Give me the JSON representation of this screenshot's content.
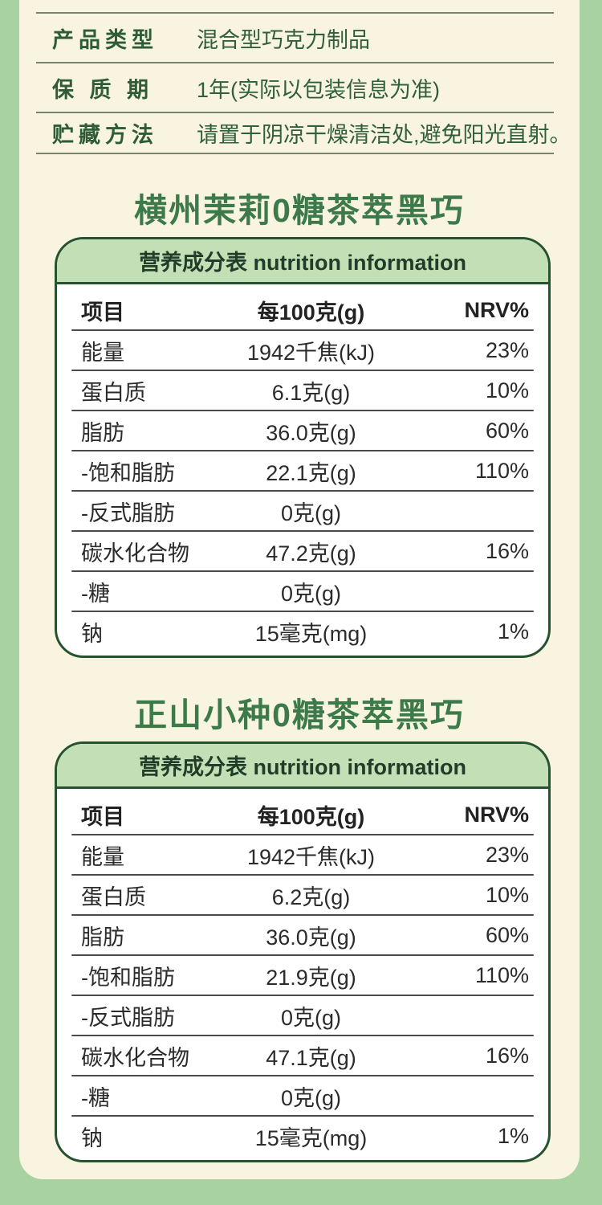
{
  "colors": {
    "page_bg": "#a9d2a2",
    "panel_bg": "#f9f4df",
    "label_green": "#2d5c36",
    "title_green": "#3c7a4a",
    "card_border_green": "#27522f",
    "header_band_green": "#c3dfb6",
    "table_text": "#2b2b2b"
  },
  "info_section": {
    "rows": [
      {
        "label": "产品类型",
        "value": "混合型巧克力制品"
      },
      {
        "label": "保 质 期",
        "value": "1年(实际以包装信息为准)"
      },
      {
        "label": "贮藏方法",
        "value": "请置于阴凉干燥清洁处,避免阳光直射。"
      }
    ]
  },
  "products": [
    {
      "title": "横州茉莉0糖茶萃黑巧",
      "table": {
        "header": "营养成分表 nutrition information",
        "columns": {
          "item": "项目",
          "per100g": "每100克(g)",
          "nrv": "NRV%"
        },
        "rows": [
          {
            "name": "能量",
            "amount": "1942千焦(kJ)",
            "nrv": "23%"
          },
          {
            "name": "蛋白质",
            "amount": "6.1克(g)",
            "nrv": "10%"
          },
          {
            "name": "脂肪",
            "amount": "36.0克(g)",
            "nrv": "60%"
          },
          {
            "name": "-饱和脂肪",
            "amount": "22.1克(g)",
            "nrv": "110%"
          },
          {
            "name": "-反式脂肪",
            "amount": "0克(g)",
            "nrv": ""
          },
          {
            "name": "碳水化合物",
            "amount": "47.2克(g)",
            "nrv": "16%"
          },
          {
            "name": "-糖",
            "amount": "0克(g)",
            "nrv": ""
          },
          {
            "name": "钠",
            "amount": "15毫克(mg)",
            "nrv": "1%"
          }
        ]
      }
    },
    {
      "title": "正山小种0糖茶萃黑巧",
      "table": {
        "header": "营养成分表 nutrition information",
        "columns": {
          "item": "项目",
          "per100g": "每100克(g)",
          "nrv": "NRV%"
        },
        "rows": [
          {
            "name": "能量",
            "amount": "1942千焦(kJ)",
            "nrv": "23%"
          },
          {
            "name": "蛋白质",
            "amount": "6.2克(g)",
            "nrv": "10%"
          },
          {
            "name": "脂肪",
            "amount": "36.0克(g)",
            "nrv": "60%"
          },
          {
            "name": "-饱和脂肪",
            "amount": "21.9克(g)",
            "nrv": "110%"
          },
          {
            "name": "-反式脂肪",
            "amount": "0克(g)",
            "nrv": ""
          },
          {
            "name": "碳水化合物",
            "amount": "47.1克(g)",
            "nrv": "16%"
          },
          {
            "name": "-糖",
            "amount": "0克(g)",
            "nrv": ""
          },
          {
            "name": "钠",
            "amount": "15毫克(mg)",
            "nrv": "1%"
          }
        ]
      }
    }
  ]
}
